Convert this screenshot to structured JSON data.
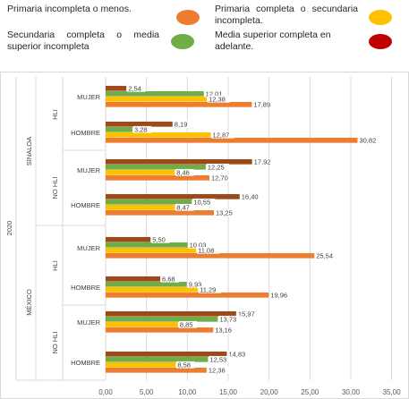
{
  "legend": [
    {
      "label": "Primaria incompleta o menos.",
      "color": "#ED7D31"
    },
    {
      "label": "Primaria completa o secundaria incompleta.",
      "color": "#FFC000"
    },
    {
      "label": "Secundaria completa o media superior incompleta",
      "color": "#70AD47"
    },
    {
      "label": "Media superior completa en adelante.",
      "color": "#C00000"
    }
  ],
  "chart_data": {
    "type": "bar",
    "orientation": "horizontal",
    "xlim": [
      0,
      35
    ],
    "xticks": [
      "0,00",
      "5,00",
      "10,00",
      "15,00",
      "20,00",
      "25,00",
      "30,00",
      "35,00"
    ],
    "year_label": "2020",
    "region_labels": [
      "SINALOA",
      "MÉXICO"
    ],
    "group_labels": [
      "HLI",
      "NO HLI",
      "HLI",
      "NO HLI"
    ],
    "category_labels": [
      "MUJER",
      "HOMBRE",
      "MUJER",
      "HOMBRE",
      "MUJER",
      "HOMBRE",
      "MUJER",
      "HOMBRE"
    ],
    "series": [
      {
        "name": "Media superior completa en adelante.",
        "color": "#9C4A1A",
        "labels": [
          "2,54",
          "8,19",
          "17,92",
          "16,40",
          "5,50",
          "6,68",
          "15,97",
          "14,83"
        ]
      },
      {
        "name": "Secundaria completa o media superior incompleta",
        "color": "#70AD47",
        "labels": [
          "12,01",
          "3,28",
          "12,25",
          "10,55",
          "10,03",
          "9,93",
          "13,73",
          "12,53"
        ]
      },
      {
        "name": "Primaria completa o secundaria incompleta.",
        "color": "#FFC000",
        "labels": [
          "12,38",
          "12,87",
          "8,46",
          "8,47",
          "11,08",
          "11,29",
          "8,85",
          "8,58"
        ]
      },
      {
        "name": "Primaria incompleta o menos.",
        "color": "#ED7D31",
        "labels": [
          "17,89",
          "30,82",
          "12,70",
          "13,25",
          "25,54",
          "19,96",
          "13,16",
          "12,36"
        ]
      }
    ]
  }
}
